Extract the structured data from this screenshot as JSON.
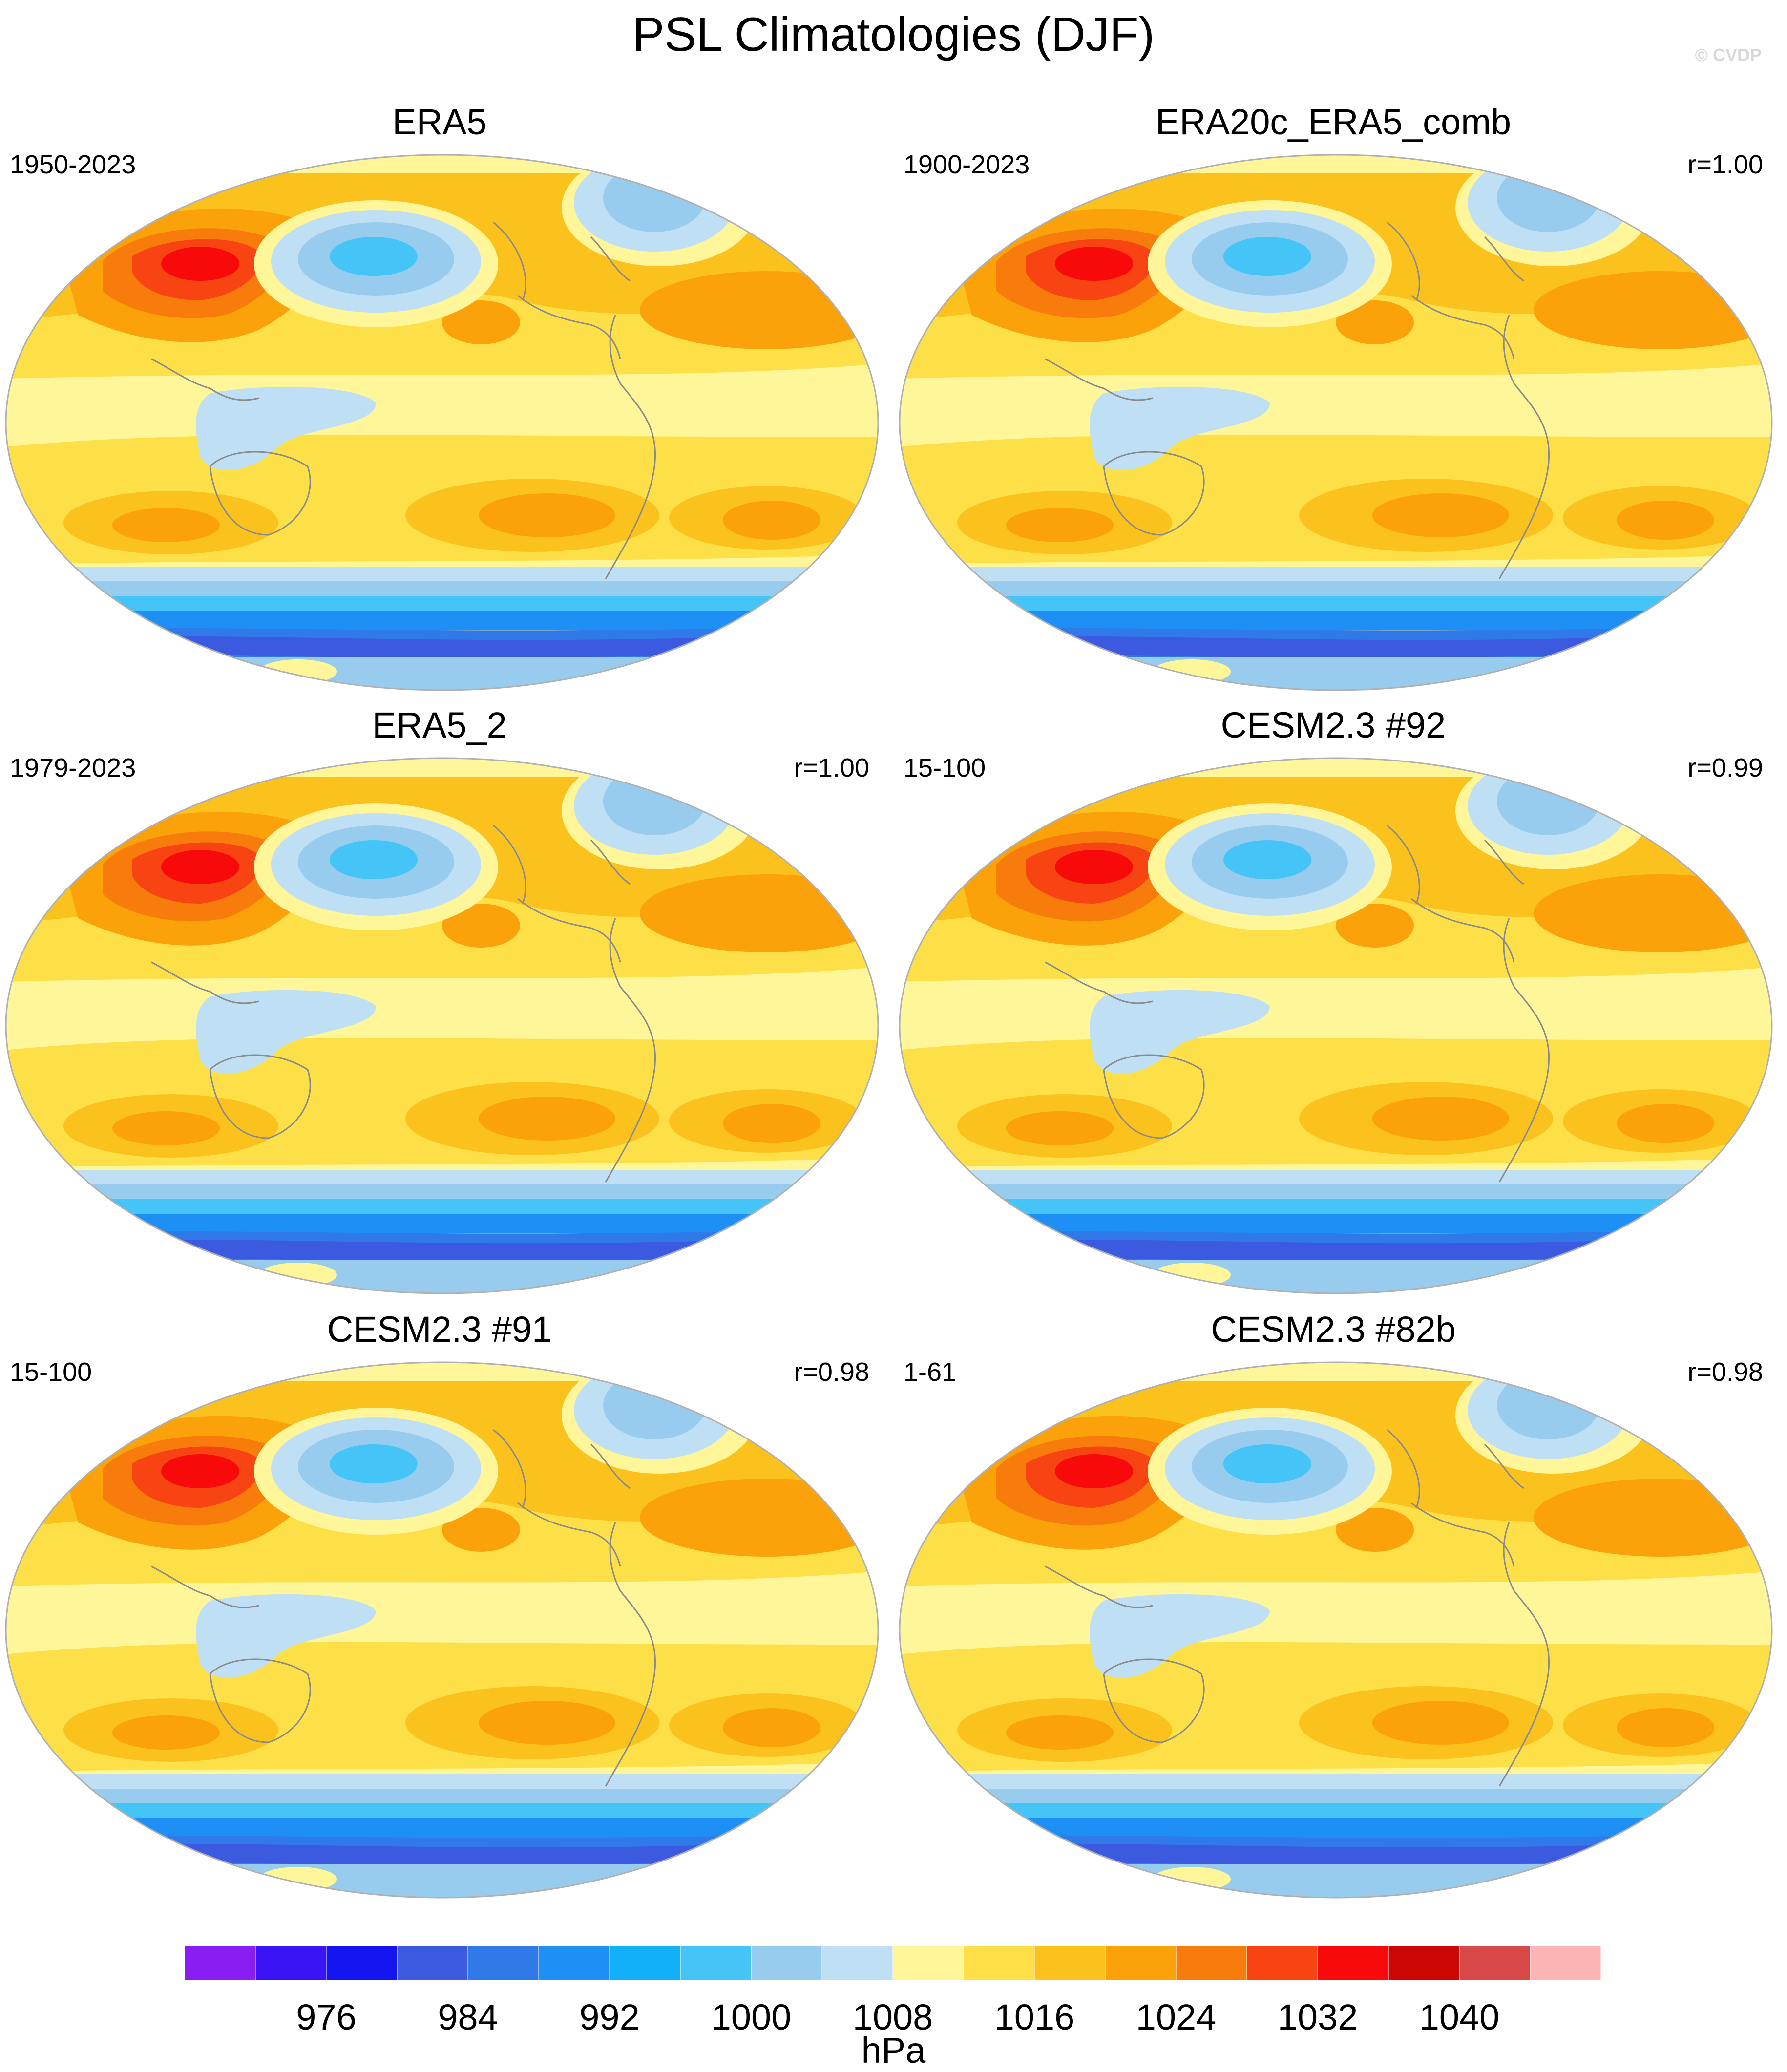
{
  "figure": {
    "title": "PSL Climatologies (DJF)",
    "watermark": "© CVDP"
  },
  "panels": [
    {
      "title": "ERA5",
      "left_label": "1950-2023",
      "right_label": ""
    },
    {
      "title": "ERA20c_ERA5_comb",
      "left_label": "1900-2023",
      "right_label": "r=1.00"
    },
    {
      "title": "ERA5_2",
      "left_label": "1979-2023",
      "right_label": "r=1.00"
    },
    {
      "title": "CESM2.3 #92",
      "left_label": "15-100",
      "right_label": "r=0.99"
    },
    {
      "title": "CESM2.3 #91",
      "left_label": "15-100",
      "right_label": "r=0.98"
    },
    {
      "title": "CESM2.3 #82b",
      "left_label": "1-61",
      "right_label": "r=0.98"
    }
  ],
  "colorbar": {
    "units": "hPa",
    "colors": [
      "#8a1ef2",
      "#3a14f5",
      "#1414f0",
      "#3c5ae0",
      "#2f7ae8",
      "#1e90f5",
      "#12b0f8",
      "#45c4f8",
      "#98ccee",
      "#bfe0f4",
      "#fff69a",
      "#fde048",
      "#fbc21e",
      "#fba10a",
      "#f87c0c",
      "#f84412",
      "#f80a0a",
      "#cc0505",
      "#d84848",
      "#fdb4b4"
    ],
    "labels": [
      "976",
      "984",
      "992",
      "1000",
      "1008",
      "1016",
      "1024",
      "1032",
      "1040"
    ]
  },
  "map_palette": {
    "ocean_base": "#fff69a",
    "yellow": "#fde048",
    "orange_light": "#fbc21e",
    "orange": "#fba10a",
    "orange_dark": "#f87c0c",
    "red_orange": "#f84412",
    "red": "#f80a0a",
    "blue_pale": "#bfe0f4",
    "blue_light": "#98ccee",
    "blue_mid": "#45c4f8",
    "blue": "#1e90f5",
    "blue_dark": "#2f7ae8",
    "blue_deep": "#3c5ae0",
    "coast": "#8a8a8a"
  }
}
